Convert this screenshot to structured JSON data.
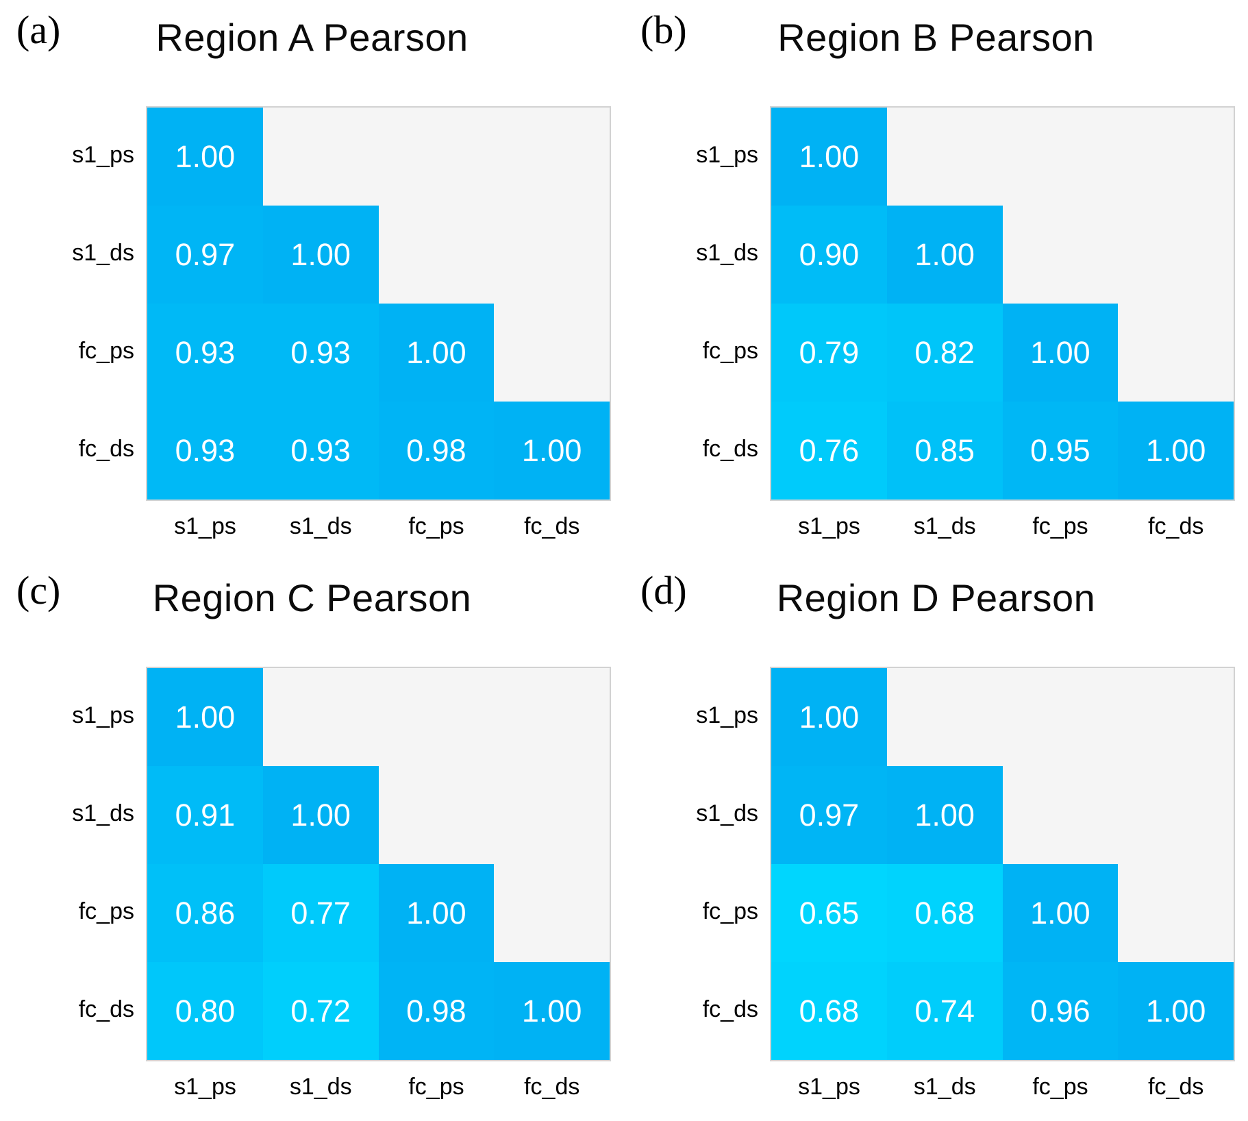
{
  "page": {
    "background": "#ffffff",
    "text_color": "#000000"
  },
  "colormap": {
    "min_value": 0.65,
    "max_value": 1.0,
    "min_color": "#00d6fe",
    "max_color": "#00b2f4",
    "upper_triangle_color": "#f5f5f5",
    "matrix_border_color": "#d2d2d2",
    "cell_text_color": "#ffffff"
  },
  "chart_data": [
    {
      "type": "heatmap",
      "panel_label": "(a)",
      "title": "Region A Pearson",
      "x_labels": [
        "s1_ps",
        "s1_ds",
        "fc_ps",
        "fc_ds"
      ],
      "y_labels": [
        "s1_ps",
        "s1_ds",
        "fc_ps",
        "fc_ds"
      ],
      "values": [
        [
          1.0,
          null,
          null,
          null
        ],
        [
          0.97,
          1.0,
          null,
          null
        ],
        [
          0.93,
          0.93,
          1.0,
          null
        ],
        [
          0.93,
          0.93,
          0.98,
          1.0
        ]
      ],
      "shape": "lower-triangle",
      "legend": "none",
      "grid": "off"
    },
    {
      "type": "heatmap",
      "panel_label": "(b)",
      "title": "Region B Pearson",
      "x_labels": [
        "s1_ps",
        "s1_ds",
        "fc_ps",
        "fc_ds"
      ],
      "y_labels": [
        "s1_ps",
        "s1_ds",
        "fc_ps",
        "fc_ds"
      ],
      "values": [
        [
          1.0,
          null,
          null,
          null
        ],
        [
          0.9,
          1.0,
          null,
          null
        ],
        [
          0.79,
          0.82,
          1.0,
          null
        ],
        [
          0.76,
          0.85,
          0.95,
          1.0
        ]
      ],
      "shape": "lower-triangle",
      "legend": "none",
      "grid": "off"
    },
    {
      "type": "heatmap",
      "panel_label": "(c)",
      "title": "Region C Pearson",
      "x_labels": [
        "s1_ps",
        "s1_ds",
        "fc_ps",
        "fc_ds"
      ],
      "y_labels": [
        "s1_ps",
        "s1_ds",
        "fc_ps",
        "fc_ds"
      ],
      "values": [
        [
          1.0,
          null,
          null,
          null
        ],
        [
          0.91,
          1.0,
          null,
          null
        ],
        [
          0.86,
          0.77,
          1.0,
          null
        ],
        [
          0.8,
          0.72,
          0.98,
          1.0
        ]
      ],
      "shape": "lower-triangle",
      "legend": "none",
      "grid": "off"
    },
    {
      "type": "heatmap",
      "panel_label": "(d)",
      "title": "Region D Pearson",
      "x_labels": [
        "s1_ps",
        "s1_ds",
        "fc_ps",
        "fc_ds"
      ],
      "y_labels": [
        "s1_ps",
        "s1_ds",
        "fc_ps",
        "fc_ds"
      ],
      "values": [
        [
          1.0,
          null,
          null,
          null
        ],
        [
          0.97,
          1.0,
          null,
          null
        ],
        [
          0.65,
          0.68,
          1.0,
          null
        ],
        [
          0.68,
          0.74,
          0.96,
          1.0
        ]
      ],
      "shape": "lower-triangle",
      "legend": "none",
      "grid": "off"
    }
  ]
}
